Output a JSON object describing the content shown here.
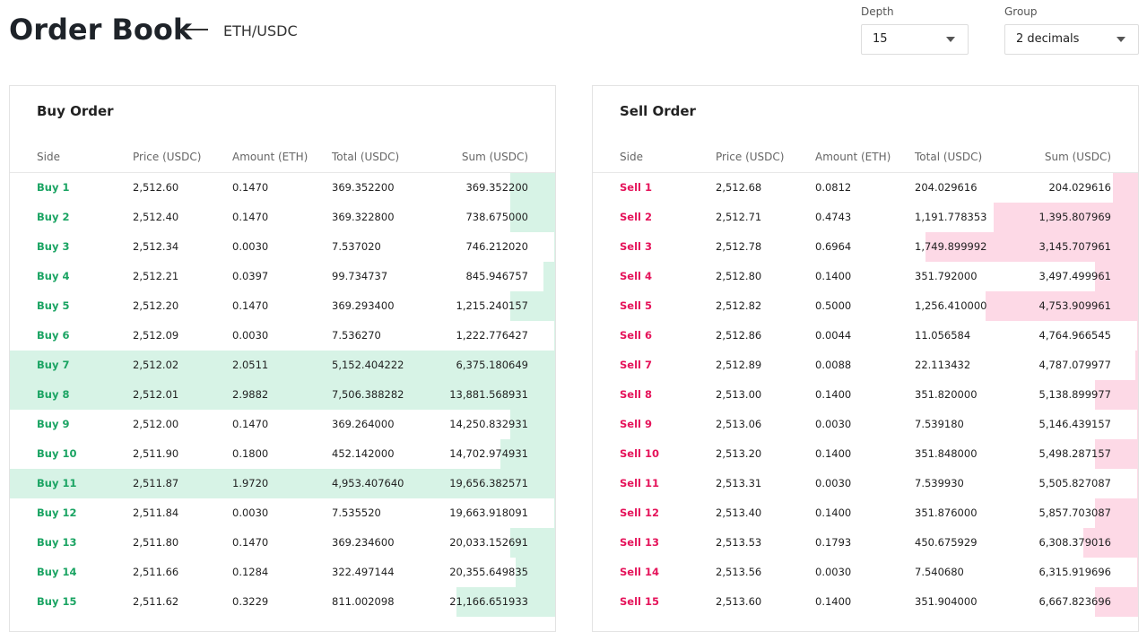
{
  "header": {
    "title": "Order Book",
    "pair": "ETH/USDC",
    "depth_label": "Depth",
    "depth_value": "15",
    "group_label": "Group",
    "group_value": "2 decimals"
  },
  "buy": {
    "title": "Buy Order",
    "columns": [
      "Side",
      "Price (USDC)",
      "Amount (ETH)",
      "Total (USDC)",
      "Sum (USDC)"
    ],
    "rows": [
      [
        "Buy 1",
        "2,512.60",
        "0.1470",
        "369.352200",
        "369.352200"
      ],
      [
        "Buy 2",
        "2,512.40",
        "0.1470",
        "369.322800",
        "738.675000"
      ],
      [
        "Buy 3",
        "2,512.34",
        "0.0030",
        "7.537020",
        "746.212020"
      ],
      [
        "Buy 4",
        "2,512.21",
        "0.0397",
        "99.734737",
        "845.946757"
      ],
      [
        "Buy 5",
        "2,512.20",
        "0.1470",
        "369.293400",
        "1,215.240157"
      ],
      [
        "Buy 6",
        "2,512.09",
        "0.0030",
        "7.536270",
        "1,222.776427"
      ],
      [
        "Buy 7",
        "2,512.02",
        "2.0511",
        "5,152.404222",
        "6,375.180649"
      ],
      [
        "Buy 8",
        "2,512.01",
        "2.9882",
        "7,506.388282",
        "13,881.568931"
      ],
      [
        "Buy 9",
        "2,512.00",
        "0.1470",
        "369.264000",
        "14,250.832931"
      ],
      [
        "Buy 10",
        "2,511.90",
        "0.1800",
        "452.142000",
        "14,702.974931"
      ],
      [
        "Buy 11",
        "2,511.87",
        "1.9720",
        "4,953.407640",
        "19,656.382571"
      ],
      [
        "Buy 12",
        "2,511.84",
        "0.0030",
        "7.535520",
        "19,663.918091"
      ],
      [
        "Buy 13",
        "2,511.80",
        "0.1470",
        "369.234600",
        "20,033.152691"
      ],
      [
        "Buy 14",
        "2,511.66",
        "0.1284",
        "322.497144",
        "20,355.649835"
      ],
      [
        "Buy 15",
        "2,511.62",
        "0.3229",
        "811.002098",
        "21,166.651933"
      ]
    ]
  },
  "sell": {
    "title": "Sell Order",
    "columns": [
      "Side",
      "Price (USDC)",
      "Amount (ETH)",
      "Total (USDC)",
      "Sum (USDC)"
    ],
    "rows": [
      [
        "Sell 1",
        "2,512.68",
        "0.0812",
        "204.029616",
        "204.029616"
      ],
      [
        "Sell 2",
        "2,512.71",
        "0.4743",
        "1,191.778353",
        "1,395.807969"
      ],
      [
        "Sell 3",
        "2,512.78",
        "0.6964",
        "1,749.899992",
        "3,145.707961"
      ],
      [
        "Sell 4",
        "2,512.80",
        "0.1400",
        "351.792000",
        "3,497.499961"
      ],
      [
        "Sell 5",
        "2,512.82",
        "0.5000",
        "1,256.410000",
        "4,753.909961"
      ],
      [
        "Sell 6",
        "2,512.86",
        "0.0044",
        "11.056584",
        "4,764.966545"
      ],
      [
        "Sell 7",
        "2,512.89",
        "0.0088",
        "22.113432",
        "4,787.079977"
      ],
      [
        "Sell 8",
        "2,513.00",
        "0.1400",
        "351.820000",
        "5,138.899977"
      ],
      [
        "Sell 9",
        "2,513.06",
        "0.0030",
        "7.539180",
        "5,146.439157"
      ],
      [
        "Sell 10",
        "2,513.20",
        "0.1400",
        "351.848000",
        "5,498.287157"
      ],
      [
        "Sell 11",
        "2,513.31",
        "0.0030",
        "7.539930",
        "5,505.827087"
      ],
      [
        "Sell 12",
        "2,513.40",
        "0.1400",
        "351.876000",
        "5,857.703087"
      ],
      [
        "Sell 13",
        "2,513.53",
        "0.1793",
        "450.675929",
        "6,308.379016"
      ],
      [
        "Sell 14",
        "2,513.56",
        "0.0030",
        "7.540680",
        "6,315.919696"
      ],
      [
        "Sell 15",
        "2,513.60",
        "0.1400",
        "351.904000",
        "6,667.823696"
      ]
    ]
  }
}
